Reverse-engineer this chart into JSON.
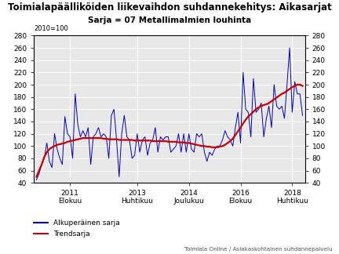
{
  "title": "Toimialapäälliköiden liikevaihdon suhdannekehitys: Aikasarjat",
  "subtitle": "Sarja = 07 Metallimalmien louhinta",
  "index_label": "2010=100",
  "ylim": [
    40,
    280
  ],
  "yticks": [
    40,
    60,
    80,
    100,
    120,
    140,
    160,
    180,
    200,
    220,
    240,
    260,
    280
  ],
  "line_colors": [
    "#0000bb",
    "#cc0000"
  ],
  "legend_labels": [
    "Alkuperäinen sarja",
    "Trendsarja"
  ],
  "footer": "Toimiala Online / Asiakaskohtainen suhdannepalvelu",
  "bg_color": "#e8e8e8",
  "tick_positions": [
    13,
    39,
    59,
    79,
    99
  ],
  "tick_labels": [
    "2011\nElokuu",
    "2013\nHuhtikuu",
    "2014\nJoulukuu",
    "2016\nElokuu",
    "2018\nHuhtikuu"
  ],
  "original_series": [
    45,
    55,
    70,
    80,
    105,
    75,
    65,
    120,
    95,
    80,
    70,
    148,
    120,
    115,
    80,
    185,
    135,
    115,
    125,
    115,
    130,
    70,
    115,
    120,
    130,
    115,
    120,
    115,
    80,
    150,
    160,
    110,
    50,
    120,
    150,
    115,
    110,
    80,
    85,
    120,
    90,
    110,
    115,
    85,
    105,
    110,
    130,
    90,
    115,
    110,
    115,
    115,
    90,
    95,
    100,
    120,
    90,
    120,
    90,
    120,
    95,
    90,
    120,
    115,
    120,
    90,
    75,
    90,
    85,
    95,
    100,
    100,
    110,
    125,
    115,
    110,
    100,
    130,
    155,
    105,
    220,
    160,
    155,
    115,
    210,
    155,
    160,
    170,
    115,
    145,
    165,
    130,
    200,
    165,
    160,
    165,
    145,
    200,
    260,
    155,
    205,
    185,
    185,
    150
  ],
  "trend_series": [
    50,
    60,
    70,
    82,
    90,
    95,
    98,
    100,
    102,
    103,
    104,
    105,
    107,
    108,
    109,
    110,
    111,
    112,
    113,
    113,
    113,
    113,
    113,
    113,
    113,
    113,
    112,
    112,
    111,
    111,
    111,
    111,
    110,
    110,
    110,
    110,
    110,
    110,
    109,
    109,
    109,
    109,
    109,
    109,
    109,
    108,
    108,
    108,
    108,
    108,
    108,
    107,
    107,
    107,
    107,
    106,
    106,
    106,
    105,
    105,
    104,
    103,
    102,
    101,
    100,
    100,
    99,
    99,
    98,
    98,
    98,
    99,
    100,
    102,
    105,
    108,
    112,
    118,
    124,
    130,
    137,
    143,
    148,
    152,
    156,
    160,
    163,
    165,
    167,
    168,
    170,
    173,
    176,
    179,
    182,
    185,
    187,
    190,
    193,
    196,
    198,
    200,
    200,
    198
  ]
}
